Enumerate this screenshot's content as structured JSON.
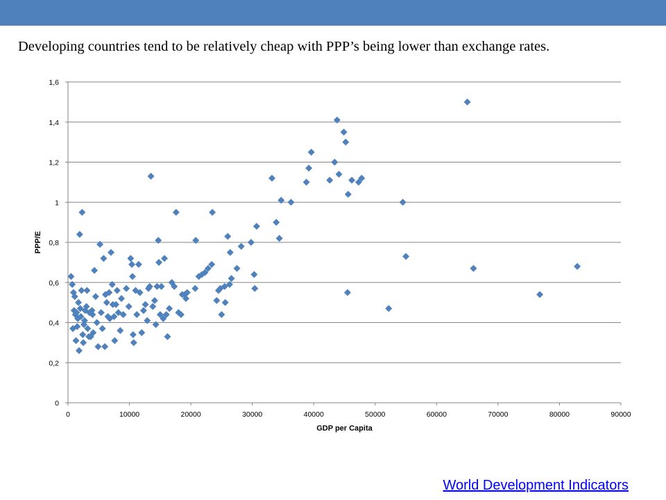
{
  "slide": {
    "title": "Developing countries tend to be relatively cheap with PPP’s being lower than exchange rates.",
    "source_link": "World Development Indicators"
  },
  "colors": {
    "header_bar": "#4f81bd",
    "marker": "#4f81bd",
    "gridline": "#868686",
    "link": "#0000ff"
  },
  "chart_data": {
    "type": "scatter",
    "title": "",
    "xlabel": "GDP per Capita",
    "ylabel": "PPP/E",
    "xlim": [
      0,
      90000
    ],
    "ylim": [
      0,
      1.6
    ],
    "x_ticks": [
      "0",
      "10000",
      "20000",
      "30000",
      "40000",
      "50000",
      "60000",
      "70000",
      "80000",
      "90000"
    ],
    "y_ticks": [
      "0",
      "0,2",
      "0,4",
      "0,6",
      "0,8",
      "1",
      "1,2",
      "1,4",
      "1,6"
    ],
    "grid": {
      "horizontal": true,
      "vertical": false
    },
    "marker": "diamond",
    "series": [
      {
        "points": [
          [
            500,
            0.63
          ],
          [
            700,
            0.59
          ],
          [
            900,
            0.55
          ],
          [
            1000,
            0.46
          ],
          [
            1100,
            0.53
          ],
          [
            800,
            0.37
          ],
          [
            1200,
            0.44
          ],
          [
            1300,
            0.31
          ],
          [
            1400,
            0.45
          ],
          [
            1500,
            0.38
          ],
          [
            1600,
            0.42
          ],
          [
            1700,
            0.5
          ],
          [
            1800,
            0.26
          ],
          [
            1900,
            0.84
          ],
          [
            2000,
            0.47
          ],
          [
            2100,
            0.43
          ],
          [
            2200,
            0.56
          ],
          [
            2300,
            0.95
          ],
          [
            2400,
            0.34
          ],
          [
            2500,
            0.3
          ],
          [
            2600,
            0.39
          ],
          [
            2700,
            0.41
          ],
          [
            2800,
            0.46
          ],
          [
            3000,
            0.48
          ],
          [
            3100,
            0.56
          ],
          [
            3200,
            0.37
          ],
          [
            3400,
            0.33
          ],
          [
            3500,
            0.45
          ],
          [
            3700,
            0.33
          ],
          [
            3900,
            0.46
          ],
          [
            4000,
            0.44
          ],
          [
            4100,
            0.35
          ],
          [
            4300,
            0.66
          ],
          [
            4500,
            0.53
          ],
          [
            4700,
            0.4
          ],
          [
            4900,
            0.28
          ],
          [
            5200,
            0.79
          ],
          [
            5400,
            0.45
          ],
          [
            5600,
            0.37
          ],
          [
            5800,
            0.72
          ],
          [
            6000,
            0.28
          ],
          [
            6100,
            0.54
          ],
          [
            6300,
            0.5
          ],
          [
            6500,
            0.43
          ],
          [
            6700,
            0.55
          ],
          [
            6800,
            0.42
          ],
          [
            7000,
            0.75
          ],
          [
            7200,
            0.59
          ],
          [
            7300,
            0.49
          ],
          [
            7500,
            0.43
          ],
          [
            7600,
            0.31
          ],
          [
            7800,
            0.49
          ],
          [
            8000,
            0.56
          ],
          [
            8200,
            0.45
          ],
          [
            8500,
            0.36
          ],
          [
            8700,
            0.52
          ],
          [
            9000,
            0.44
          ],
          [
            9500,
            0.57
          ],
          [
            9900,
            0.48
          ],
          [
            10200,
            0.72
          ],
          [
            10400,
            0.69
          ],
          [
            10500,
            0.63
          ],
          [
            10600,
            0.34
          ],
          [
            10700,
            0.3
          ],
          [
            11000,
            0.56
          ],
          [
            11200,
            0.44
          ],
          [
            11500,
            0.69
          ],
          [
            11700,
            0.55
          ],
          [
            12000,
            0.35
          ],
          [
            12300,
            0.46
          ],
          [
            12600,
            0.49
          ],
          [
            12900,
            0.41
          ],
          [
            13100,
            0.57
          ],
          [
            13300,
            0.58
          ],
          [
            13500,
            1.13
          ],
          [
            13800,
            0.48
          ],
          [
            14100,
            0.51
          ],
          [
            14300,
            0.39
          ],
          [
            14500,
            0.58
          ],
          [
            14700,
            0.81
          ],
          [
            14800,
            0.7
          ],
          [
            15000,
            0.44
          ],
          [
            15200,
            0.58
          ],
          [
            15500,
            0.42
          ],
          [
            15700,
            0.72
          ],
          [
            16000,
            0.44
          ],
          [
            16200,
            0.33
          ],
          [
            16500,
            0.47
          ],
          [
            16900,
            0.6
          ],
          [
            17300,
            0.58
          ],
          [
            17600,
            0.95
          ],
          [
            18000,
            0.45
          ],
          [
            18400,
            0.44
          ],
          [
            18600,
            0.54
          ],
          [
            19000,
            0.54
          ],
          [
            19200,
            0.52
          ],
          [
            19400,
            0.55
          ],
          [
            20700,
            0.57
          ],
          [
            20800,
            0.81
          ],
          [
            21300,
            0.63
          ],
          [
            21800,
            0.64
          ],
          [
            22300,
            0.65
          ],
          [
            22800,
            0.67
          ],
          [
            23400,
            0.69
          ],
          [
            23500,
            0.95
          ],
          [
            24200,
            0.51
          ],
          [
            24500,
            0.56
          ],
          [
            24800,
            0.57
          ],
          [
            25000,
            0.44
          ],
          [
            25500,
            0.58
          ],
          [
            25600,
            0.5
          ],
          [
            26000,
            0.83
          ],
          [
            26300,
            0.59
          ],
          [
            26400,
            0.75
          ],
          [
            26600,
            0.62
          ],
          [
            27500,
            0.67
          ],
          [
            28200,
            0.78
          ],
          [
            29800,
            0.8
          ],
          [
            30300,
            0.64
          ],
          [
            30400,
            0.57
          ],
          [
            30700,
            0.88
          ],
          [
            33200,
            1.12
          ],
          [
            33900,
            0.9
          ],
          [
            34400,
            0.82
          ],
          [
            34700,
            1.01
          ],
          [
            36300,
            1.0
          ],
          [
            38800,
            1.1
          ],
          [
            39200,
            1.17
          ],
          [
            39600,
            1.25
          ],
          [
            42600,
            1.11
          ],
          [
            43400,
            1.2
          ],
          [
            43800,
            1.41
          ],
          [
            44100,
            1.14
          ],
          [
            44900,
            1.35
          ],
          [
            45200,
            1.3
          ],
          [
            45500,
            0.55
          ],
          [
            45600,
            1.04
          ],
          [
            46200,
            1.11
          ],
          [
            47300,
            1.1
          ],
          [
            47800,
            1.12
          ],
          [
            52200,
            0.47
          ],
          [
            54500,
            1.0
          ],
          [
            55000,
            0.73
          ],
          [
            65000,
            1.5
          ],
          [
            66000,
            0.67
          ],
          [
            76800,
            0.54
          ],
          [
            82900,
            0.68
          ]
        ]
      }
    ]
  }
}
